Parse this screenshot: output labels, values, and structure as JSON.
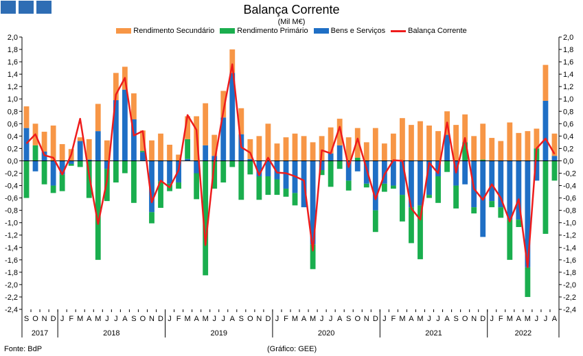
{
  "header": {
    "title": "Balança Corrente",
    "subtitle": "(Mil M€)"
  },
  "footer": {
    "source": "Fonte: BdP",
    "credit": "(Gráfico: GEE)"
  },
  "colors": {
    "secundario": "#f79646",
    "primario": "#1aae4e",
    "bens": "#1f6fc5",
    "balanca": "#ee1c1c",
    "logo": "#2e6db4"
  },
  "legend": [
    {
      "label": "Rendimento Secundário",
      "key": "secundario",
      "kind": "bar"
    },
    {
      "label": "Rendimento Primário",
      "key": "primario",
      "kind": "bar"
    },
    {
      "label": "Bens e Serviços",
      "key": "bens",
      "kind": "bar"
    },
    {
      "label": "Balança Corrente",
      "key": "balanca",
      "kind": "line"
    }
  ],
  "chart_data": {
    "type": "bar",
    "title": "Balança Corrente",
    "ylabel": "Mil M€",
    "ylim": [
      -2.4,
      2.0
    ],
    "ytick_step": 0.2,
    "grid": false,
    "legend_position": "top",
    "categories": [
      "S",
      "O",
      "N",
      "D",
      "J",
      "F",
      "M",
      "A",
      "M",
      "J",
      "J",
      "A",
      "S",
      "O",
      "N",
      "D",
      "J",
      "F",
      "M",
      "A",
      "M",
      "J",
      "J",
      "A",
      "S",
      "O",
      "N",
      "D",
      "J",
      "F",
      "M",
      "A",
      "M",
      "J",
      "J",
      "A",
      "S",
      "O",
      "N",
      "D",
      "J",
      "F",
      "M",
      "A",
      "M",
      "J",
      "J",
      "A",
      "S",
      "O",
      "N",
      "D",
      "J",
      "F",
      "M",
      "A",
      "M",
      "J",
      "J",
      "A"
    ],
    "year_groups": [
      {
        "label": "2017",
        "start": 0,
        "count": 4
      },
      {
        "label": "2018",
        "start": 4,
        "count": 12
      },
      {
        "label": "2019",
        "start": 16,
        "count": 12
      },
      {
        "label": "2020",
        "start": 28,
        "count": 12
      },
      {
        "label": "2021",
        "start": 40,
        "count": 12
      },
      {
        "label": "2022",
        "start": 52,
        "count": 8
      }
    ],
    "series": [
      {
        "name": "Bens e Serviços",
        "key": "bens",
        "values": [
          0.53,
          -0.17,
          0.15,
          -0.4,
          -0.22,
          -0.05,
          0.32,
          0.02,
          0.48,
          -0.13,
          0.98,
          1.15,
          0.67,
          0.14,
          -0.83,
          -0.33,
          -0.37,
          -0.35,
          0.03,
          -0.2,
          0.25,
          0.08,
          0.7,
          1.42,
          0.43,
          0.03,
          -0.25,
          -0.25,
          -0.3,
          -0.45,
          -0.52,
          -0.75,
          -1.35,
          -0.15,
          0.12,
          0.25,
          -0.32,
          -0.17,
          -0.37,
          -0.8,
          -0.37,
          -0.4,
          -0.55,
          -0.75,
          -0.72,
          -0.55,
          -0.25,
          0.42,
          -0.4,
          -0.38,
          -0.75,
          -1.23,
          -0.65,
          -0.75,
          -0.95,
          -0.95,
          -1.72,
          -0.32,
          0.97,
          0.08
        ]
      },
      {
        "name": "Rendimento Primário",
        "key": "primario",
        "values": [
          -0.6,
          0.25,
          -0.38,
          -0.12,
          -0.27,
          -0.03,
          -0.1,
          -0.6,
          -1.6,
          -0.52,
          -0.35,
          -0.2,
          -0.68,
          0.02,
          -0.18,
          -0.43,
          -0.12,
          -0.1,
          0.32,
          -0.42,
          -1.85,
          -0.45,
          -0.35,
          -0.1,
          -0.63,
          -0.22,
          -0.38,
          -0.3,
          -0.25,
          -0.13,
          -0.2,
          0.0,
          -0.4,
          -0.08,
          -0.42,
          -0.13,
          -0.16,
          0.05,
          -0.06,
          -0.35,
          -0.13,
          -0.05,
          -0.43,
          -0.58,
          -0.87,
          -0.05,
          -0.43,
          -0.18,
          -0.37,
          0.3,
          -0.1,
          0.02,
          -0.1,
          -0.17,
          -0.65,
          -0.12,
          -0.48,
          0.2,
          -1.18,
          -0.32
        ]
      },
      {
        "name": "Rendimento Secundário",
        "key": "secundario",
        "values": [
          0.35,
          0.35,
          0.32,
          0.57,
          0.27,
          0.19,
          0.06,
          0.33,
          0.44,
          0.33,
          0.44,
          0.37,
          0.42,
          0.33,
          0.33,
          0.44,
          0.26,
          0.1,
          0.37,
          0.72,
          0.68,
          0.34,
          0.43,
          0.38,
          0.42,
          0.32,
          0.4,
          0.6,
          0.28,
          0.38,
          0.44,
          0.4,
          0.3,
          0.4,
          0.42,
          0.43,
          0.38,
          0.48,
          0.3,
          0.53,
          0.28,
          0.44,
          0.69,
          0.58,
          0.64,
          0.57,
          0.48,
          0.38,
          0.58,
          0.45,
          0.4,
          0.58,
          0.37,
          0.32,
          0.62,
          0.45,
          0.48,
          0.32,
          0.58,
          0.36
        ]
      },
      {
        "name": "Balança Corrente",
        "key": "balanca",
        "values": [
          0.28,
          0.43,
          0.09,
          0.05,
          -0.22,
          0.1,
          0.68,
          -0.23,
          -1.02,
          -0.32,
          1.07,
          1.34,
          0.41,
          0.48,
          -0.67,
          -0.32,
          -0.43,
          -0.15,
          0.74,
          0.5,
          -1.36,
          -0.02,
          0.8,
          1.56,
          0.22,
          0.13,
          -0.23,
          0.05,
          -0.19,
          -0.2,
          -0.25,
          -0.32,
          -1.45,
          0.17,
          0.12,
          0.55,
          -0.1,
          0.36,
          -0.13,
          -0.62,
          -0.22,
          0.01,
          0.0,
          -0.77,
          -0.95,
          -0.03,
          -0.2,
          0.62,
          -0.19,
          0.37,
          -0.45,
          -0.63,
          -0.38,
          -0.6,
          -0.98,
          -0.62,
          -1.72,
          0.2,
          0.36,
          0.11
        ]
      }
    ]
  }
}
